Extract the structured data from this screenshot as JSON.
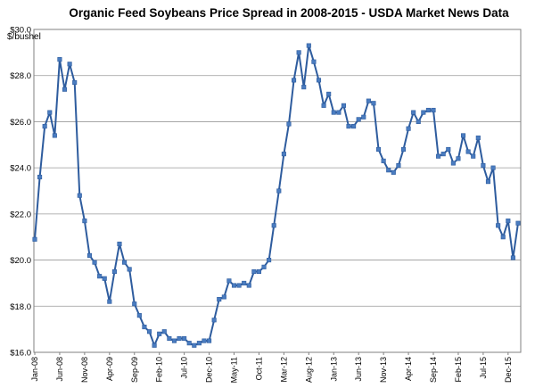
{
  "chart_data": {
    "type": "line",
    "title": "Organic Feed Soybeans Price Spread in 2008-2015 - USDA Market News Data",
    "ylabel": "$/bushel",
    "xlabel": "",
    "ylim": [
      16.0,
      30.0
    ],
    "yticks": [
      "$16.0",
      "$18.0",
      "$20.0",
      "$22.0",
      "$24.0",
      "$26.0",
      "$28.0",
      "$30.0"
    ],
    "grid": true,
    "legend": "none",
    "line_color": "#2E5C9E",
    "marker_color": "#4A7CC0",
    "grid_color": "#999999",
    "x_start": "2008-01",
    "x_labels": [
      "Jan-08",
      "Jun-08",
      "Nov-08",
      "Apr-09",
      "Sep-09",
      "Feb-10",
      "Jul-10",
      "Dec-10",
      "May-11",
      "Oct-11",
      "Mar-12",
      "Aug-12",
      "Jan-13",
      "Jun-13",
      "Nov-13",
      "Apr-14",
      "Sep-14",
      "Feb-15",
      "Jul-15",
      "Dec-15"
    ],
    "series": [
      {
        "values": [
          20.9,
          23.6,
          25.8,
          26.4,
          25.4,
          28.7,
          27.4,
          28.5,
          27.7,
          22.8,
          21.7,
          20.2,
          19.9,
          19.3,
          19.2,
          18.2,
          19.5,
          20.7,
          19.9,
          19.6,
          18.1,
          17.6,
          17.1,
          16.9,
          16.3,
          16.8,
          16.9,
          16.6,
          16.5,
          16.6,
          16.6,
          16.4,
          16.3,
          16.4,
          16.5,
          16.5,
          17.4,
          18.3,
          18.4,
          19.1,
          18.9,
          18.9,
          19.0,
          18.9,
          19.5,
          19.5,
          19.7,
          20.0,
          21.5,
          23.0,
          24.6,
          25.9,
          27.8,
          29.0,
          27.5,
          29.3,
          28.6,
          27.8,
          26.7,
          27.2,
          26.4,
          26.4,
          26.7,
          25.8,
          25.8,
          26.1,
          26.2,
          26.9,
          26.8,
          24.8,
          24.3,
          23.9,
          23.8,
          24.1,
          24.8,
          25.7,
          26.4,
          26.0,
          26.4,
          26.5,
          26.5,
          24.5,
          24.6,
          24.8,
          24.2,
          24.4,
          25.4,
          24.7,
          24.5,
          25.3,
          24.1,
          23.4,
          24.0,
          21.5,
          21.0,
          21.7,
          20.1,
          21.6
        ]
      }
    ]
  }
}
